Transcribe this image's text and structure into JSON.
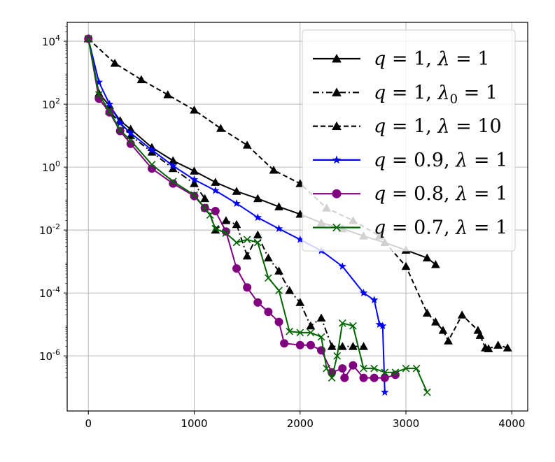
{
  "chart_data": {
    "type": "line",
    "title": "",
    "xlabel": "",
    "ylabel": "",
    "xlim": [
      -200,
      4150
    ],
    "ylim_log10": [
      -7.75,
      4.6
    ],
    "y_scale": "log",
    "grid": true,
    "legend_position": "top-right",
    "x_ticks": [
      0,
      1000,
      2000,
      3000,
      4000
    ],
    "x_tick_labels": [
      "0",
      "1000",
      "2000",
      "3000",
      "4000"
    ],
    "y_ticks_log10": [
      4,
      2,
      0,
      -2,
      -4,
      -6
    ],
    "y_tick_labels": [
      {
        "base": "10",
        "exp": "4"
      },
      {
        "base": "10",
        "exp": "2"
      },
      {
        "base": "10",
        "exp": "0"
      },
      {
        "base": "10",
        "exp": "-2"
      },
      {
        "base": "10",
        "exp": "-4"
      },
      {
        "base": "10",
        "exp": "-6"
      }
    ],
    "series": [
      {
        "name": "q = 1, λ = 1",
        "legend_parts": [
          "q",
          " = 1, ",
          "λ",
          " = 1"
        ],
        "color": "#000000",
        "dash": "solid",
        "marker": "triangle",
        "x": [
          0,
          100,
          200,
          300,
          400,
          600,
          800,
          1000,
          1200,
          1400,
          1600,
          1800,
          2000,
          2200,
          2400,
          2600,
          2800,
          3000,
          3200,
          3280
        ],
        "y": [
          12000,
          220,
          90,
          30,
          16,
          4.2,
          1.6,
          0.75,
          0.33,
          0.17,
          0.1,
          0.055,
          0.032,
          0.017,
          0.011,
          0.0065,
          0.004,
          0.0023,
          0.0013,
          0.0008
        ]
      },
      {
        "name": "q = 1, λ0 = 1",
        "legend_parts": [
          "q",
          " = 1, ",
          "λ",
          "0",
          " = 1"
        ],
        "color": "#000000",
        "dash": "dashdot",
        "marker": "triangle",
        "x": [
          0,
          100,
          200,
          400,
          600,
          800,
          1000,
          1100,
          1200,
          1300,
          1400,
          1500,
          1600,
          1700,
          1800,
          1900,
          2000,
          2100,
          2200,
          2300,
          2400,
          2500,
          2600
        ],
        "y": [
          12000,
          200,
          60,
          10,
          3,
          0.9,
          0.3,
          0.1,
          0.01,
          0.02,
          0.015,
          0.0015,
          0.007,
          0.0013,
          0.0005,
          0.00012,
          5e-05,
          9e-06,
          1.6e-05,
          2e-06,
          2e-06,
          2e-06,
          2e-06
        ]
      },
      {
        "name": "q = 1, λ = 10",
        "legend_parts": [
          "q",
          " = 1, ",
          "λ",
          " = 10"
        ],
        "color": "#000000",
        "dash": "dashed",
        "marker": "triangle",
        "x": [
          0,
          250,
          500,
          750,
          1000,
          1250,
          1500,
          1750,
          2000,
          2250,
          2500,
          2750,
          3000,
          3200,
          3280,
          3350,
          3400,
          3530,
          3680,
          3700,
          3750,
          3780,
          3870,
          3960
        ],
        "y": [
          12000,
          2000,
          600,
          200,
          65,
          17,
          5,
          0.8,
          0.3,
          0.05,
          0.02,
          0.0065,
          0.0007,
          2.3e-05,
          1.2e-05,
          6.5e-06,
          3e-06,
          2e-05,
          6.5e-06,
          4.5e-06,
          1.8e-06,
          1.7e-06,
          2.2e-06,
          1.8e-06
        ]
      },
      {
        "name": "q = 0.9, λ = 1",
        "legend_parts": [
          "q",
          " = 0.9, ",
          "λ",
          " = 1"
        ],
        "color": "#0000ff",
        "dash": "solid",
        "marker": "star",
        "x": [
          0,
          100,
          200,
          300,
          400,
          600,
          800,
          1000,
          1200,
          1400,
          1600,
          1800,
          2000,
          2200,
          2400,
          2600,
          2700,
          2750,
          2780,
          2800
        ],
        "y": [
          12000,
          500,
          100,
          25,
          12,
          3.5,
          1.1,
          0.4,
          0.18,
          0.07,
          0.025,
          0.011,
          0.005,
          0.0022,
          0.0007,
          0.0001,
          6e-05,
          1e-05,
          9e-06,
          7e-08
        ]
      },
      {
        "name": "q = 0.8, λ = 1",
        "legend_parts": [
          "q",
          " = 0.8, ",
          "λ",
          " = 1"
        ],
        "color": "#800080",
        "dash": "solid",
        "marker": "circle",
        "x": [
          0,
          100,
          200,
          300,
          400,
          600,
          800,
          1000,
          1100,
          1200,
          1300,
          1400,
          1500,
          1600,
          1700,
          1800,
          1850,
          2000,
          2100,
          2200,
          2300,
          2400,
          2420,
          2500,
          2600,
          2700,
          2800,
          2900
        ],
        "y": [
          12000,
          150,
          55,
          14,
          5.5,
          0.9,
          0.3,
          0.12,
          0.05,
          0.04,
          0.009,
          0.0006,
          0.00015,
          5e-05,
          2.5e-05,
          1.2e-05,
          2.5e-06,
          2.2e-06,
          2.2e-06,
          1.5e-06,
          3e-07,
          4e-07,
          2e-07,
          5e-07,
          2e-07,
          2e-07,
          2e-07,
          2.5e-07
        ]
      },
      {
        "name": "q = 0.7, λ = 1",
        "legend_parts": [
          "q",
          " = 0.7, ",
          "λ",
          " = 1"
        ],
        "color": "#006400",
        "dash": "solid",
        "marker": "x",
        "x": [
          0,
          100,
          200,
          300,
          400,
          600,
          800,
          1000,
          1100,
          1150,
          1200,
          1300,
          1400,
          1500,
          1600,
          1700,
          1800,
          1900,
          2000,
          2100,
          2200,
          2250,
          2300,
          2350,
          2400,
          2500,
          2600,
          2700,
          2800,
          2900,
          3000,
          3100,
          3200
        ],
        "y": [
          12000,
          200,
          60,
          15,
          7,
          1.2,
          0.35,
          0.13,
          0.05,
          0.03,
          0.011,
          0.008,
          0.004,
          0.005,
          0.004,
          0.0003,
          0.00012,
          6e-06,
          5.5e-06,
          5.5e-06,
          4e-06,
          4e-07,
          2e-07,
          1e-06,
          1.1e-05,
          9e-06,
          4e-07,
          4e-07,
          3e-07,
          3e-07,
          4e-07,
          4e-07,
          7e-08
        ]
      }
    ]
  }
}
